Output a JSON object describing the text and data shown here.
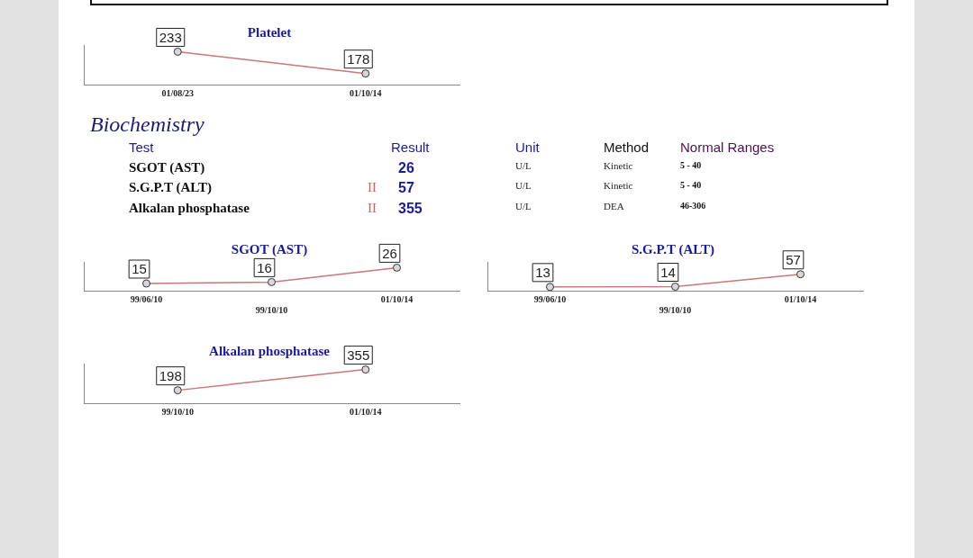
{
  "chart_data": [
    {
      "type": "line",
      "title": "Platelet",
      "categories": [
        "01/08/23",
        "01/10/14"
      ],
      "values": [
        233,
        178
      ],
      "color": "#c87878",
      "marker": "circle",
      "data_labels": true
    },
    {
      "type": "other",
      "title": "Biochemistry",
      "categories": [
        "Test",
        null,
        "Result",
        "Unit",
        "Method",
        "Normal Ranges"
      ],
      "cell_labels": [
        [
          "SGOT (AST)",
          null,
          "26",
          "U/L",
          "Kinetic",
          "5 - 40"
        ],
        [
          "S.G.P.T (ALT)",
          "II",
          "57",
          "U/L",
          "Kinetic",
          "5 - 40"
        ],
        [
          "Alkalan phosphatase",
          "II",
          "355",
          "U/L",
          "DEA",
          "46-306"
        ]
      ]
    },
    {
      "type": "line",
      "title": "SGOT (AST)",
      "categories": [
        "99/06/10",
        "99/10/10",
        "01/10/14"
      ],
      "values": [
        15,
        16,
        26
      ],
      "color": "#c87878",
      "marker": "circle",
      "data_labels": true
    },
    {
      "type": "line",
      "title": "S.G.P.T (ALT)",
      "categories": [
        "99/06/10",
        "99/10/10",
        "01/10/14"
      ],
      "values": [
        13,
        14,
        57
      ],
      "color": "#c87878",
      "marker": "circle",
      "data_labels": true
    },
    {
      "type": "line",
      "title": "Alkalan phosphatase",
      "categories": [
        "99/10/10",
        "01/10/14"
      ],
      "values": [
        198,
        355
      ],
      "color": "#c87878",
      "marker": "circle",
      "data_labels": true
    }
  ]
}
